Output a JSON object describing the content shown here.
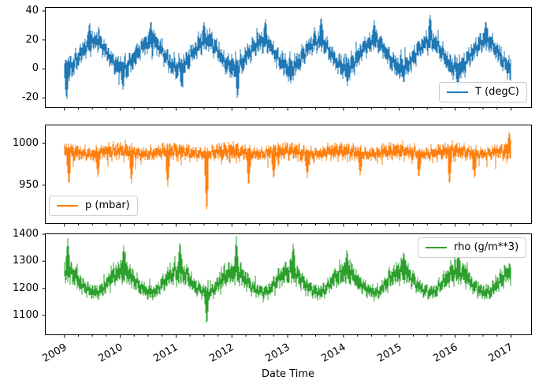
{
  "figure": {
    "background": "#ffffff",
    "xlabel": "Date Time"
  },
  "x_axis": {
    "label": "Date Time",
    "ticks": [
      2009,
      2010,
      2011,
      2012,
      2013,
      2014,
      2015,
      2016,
      2017
    ],
    "minor_ticks_per_year": 4,
    "range": [
      2009.0,
      2017.0
    ]
  },
  "chart_data": [
    {
      "type": "line",
      "label": "T (degC)",
      "color": "#1f77b4",
      "legend_loc": "lower right",
      "x_range": [
        2009.0,
        2017.0
      ],
      "ylim": [
        -26.5,
        42.7
      ],
      "yticks": [
        -20,
        0,
        20,
        40
      ],
      "monthly_mean": [
        0.5,
        1.5,
        5.5,
        10.5,
        14.5,
        17.5,
        19.5,
        19.0,
        14.5,
        9.5,
        4.5,
        1.5
      ],
      "monthly_spread": [
        9.0,
        9.0,
        8.0,
        7.5,
        7.5,
        7.5,
        8.0,
        8.0,
        7.0,
        7.0,
        7.0,
        8.5
      ],
      "noise": {
        "p_high": 0.1,
        "high_mul": 0.7,
        "p_low": 0.1,
        "low_mul": 0.8,
        "seasonal_high": false,
        "seasonal_low": true
      },
      "spikes": [
        [
          2009.04,
          -23
        ],
        [
          2009.45,
          33
        ],
        [
          2010.05,
          -15
        ],
        [
          2010.55,
          34
        ],
        [
          2011.1,
          -14
        ],
        [
          2011.5,
          33
        ],
        [
          2012.1,
          -22
        ],
        [
          2012.6,
          35
        ],
        [
          2013.05,
          -11
        ],
        [
          2013.6,
          37
        ],
        [
          2014.07,
          -12
        ],
        [
          2014.55,
          34
        ],
        [
          2015.08,
          -10
        ],
        [
          2015.55,
          38.5
        ],
        [
          2016.05,
          -16
        ],
        [
          2016.55,
          34
        ],
        [
          2016.99,
          -9
        ]
      ],
      "seed": 101
    },
    {
      "type": "line",
      "label": "p (mbar)",
      "color": "#ff7f0e",
      "legend_loc": "lower left",
      "x_range": [
        2009.0,
        2017.0
      ],
      "ylim": [
        905,
        1022
      ],
      "yticks": [
        950,
        1000
      ],
      "monthly_mean": [
        991,
        990,
        989,
        988,
        987,
        987,
        987,
        988,
        990,
        990,
        990,
        991
      ],
      "monthly_spread": [
        11,
        10,
        10,
        9,
        8,
        8,
        8,
        8,
        9,
        10,
        11,
        11
      ],
      "noise": {
        "p_high": 0.08,
        "high_mul": 0.5,
        "p_low": 0.1,
        "low_mul": 1.6,
        "seasonal_high": false,
        "seasonal_low": false
      },
      "spikes": [
        [
          2009.08,
          948
        ],
        [
          2009.6,
          958
        ],
        [
          2010.2,
          950
        ],
        [
          2010.85,
          946
        ],
        [
          2011.55,
          913.5
        ],
        [
          2012.3,
          947
        ],
        [
          2012.75,
          955
        ],
        [
          2013.35,
          958
        ],
        [
          2014.3,
          960
        ],
        [
          2015.35,
          957
        ],
        [
          2015.9,
          948
        ],
        [
          2016.35,
          956
        ],
        [
          2016.97,
          1015
        ]
      ],
      "seed": 202
    },
    {
      "type": "line",
      "label": "rho (g/m**3)",
      "color": "#2ca02c",
      "legend_loc": "upper right",
      "x_range": [
        2009.0,
        2017.0
      ],
      "ylim": [
        1030,
        1403
      ],
      "yticks": [
        1100,
        1200,
        1300,
        1400
      ],
      "monthly_mean": [
        1262,
        1258,
        1242,
        1218,
        1202,
        1192,
        1186,
        1186,
        1205,
        1226,
        1246,
        1258
      ],
      "monthly_spread": [
        48,
        46,
        40,
        34,
        30,
        28,
        28,
        28,
        30,
        36,
        42,
        46
      ],
      "noise": {
        "p_high": 0.1,
        "high_mul": 1.1,
        "p_low": 0.08,
        "low_mul": 0.5,
        "seasonal_high": true,
        "seasonal_low": false
      },
      "spikes": [
        [
          2009.06,
          1387
        ],
        [
          2010.06,
          1362
        ],
        [
          2011.07,
          1378
        ],
        [
          2011.55,
          1059
        ],
        [
          2012.08,
          1393
        ],
        [
          2013.1,
          1372
        ],
        [
          2014.06,
          1345
        ],
        [
          2015.08,
          1342
        ],
        [
          2016.06,
          1350
        ],
        [
          2016.99,
          1283
        ]
      ],
      "seed": 303
    }
  ]
}
